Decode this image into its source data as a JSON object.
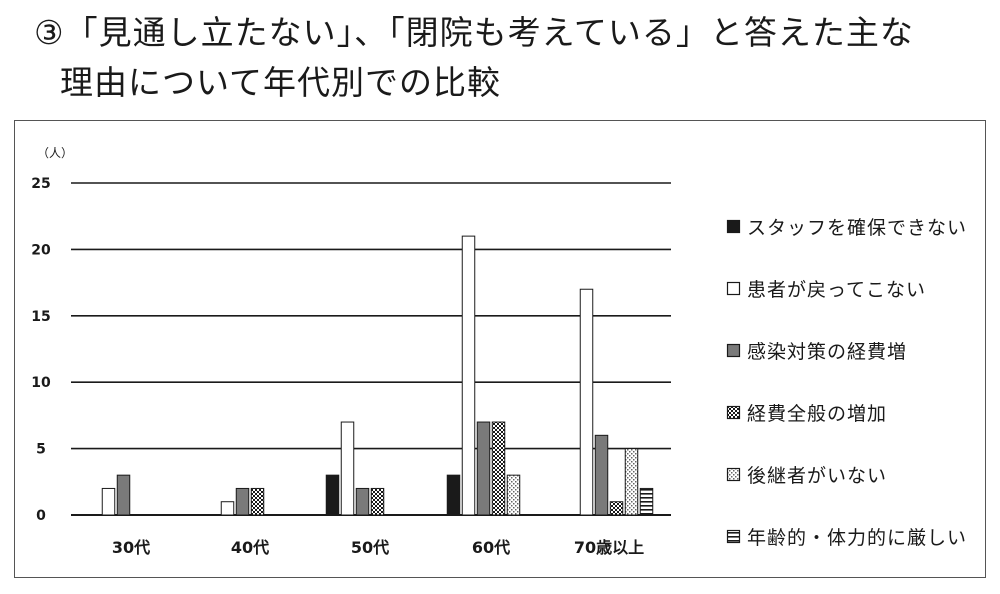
{
  "title": {
    "line1": "③「見通し立たない」、「閉院も考えている」と答えた主な",
    "line2": "理由について年代別での比較"
  },
  "chart_data": {
    "type": "bar",
    "ylabel": "（人）",
    "ylim": [
      0,
      25
    ],
    "yticks": [
      0,
      5,
      10,
      15,
      20,
      25
    ],
    "grid": true,
    "legend_position": "right",
    "categories": [
      "30代",
      "40代",
      "50代",
      "60代",
      "70歳以上"
    ],
    "series": [
      {
        "name": "スタッフを確保できない",
        "pattern": "solid-black",
        "values": [
          0,
          0,
          3,
          3,
          0
        ]
      },
      {
        "name": "患者が戻ってこない",
        "pattern": "white",
        "values": [
          2,
          1,
          7,
          21,
          17
        ]
      },
      {
        "name": "感染対策の経費増",
        "pattern": "gray",
        "values": [
          3,
          2,
          2,
          7,
          6
        ]
      },
      {
        "name": "経費全般の増加",
        "pattern": "dark-checker",
        "values": [
          0,
          2,
          2,
          7,
          1
        ]
      },
      {
        "name": "後継者がいない",
        "pattern": "light-dots",
        "values": [
          0,
          0,
          0,
          3,
          5
        ]
      },
      {
        "name": "年齢的・体力的に厳しい",
        "pattern": "horizontal-stripes",
        "values": [
          0,
          0,
          0,
          0,
          2
        ]
      }
    ]
  }
}
